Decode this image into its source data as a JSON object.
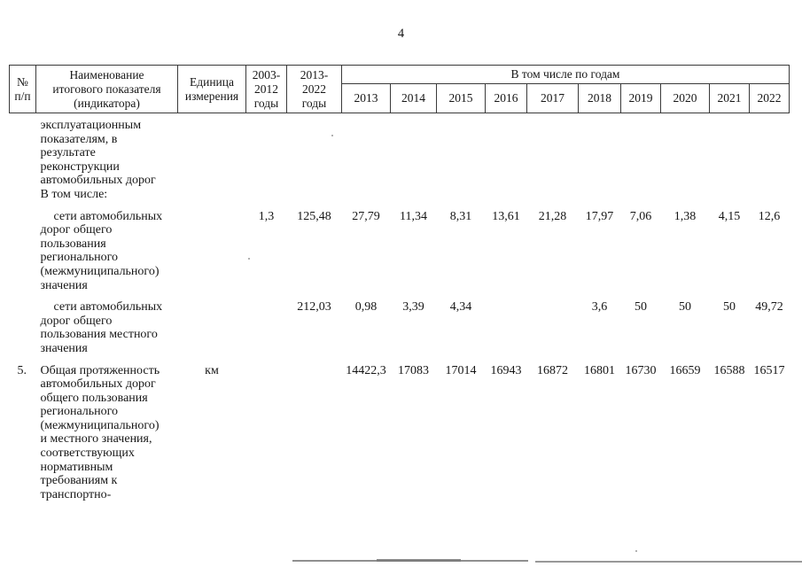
{
  "page_number": "4",
  "table": {
    "header": {
      "col_num": "№ п/п",
      "col_name": "Наименование\nитогового показателя\n(индикатора)",
      "col_unit": "Единица\nизмерения",
      "col_2003_2012": "2003-\n2012\nгоды",
      "col_2013_2022": "2013-\n2022\nгоды",
      "years_group": "В том числе по годам",
      "years": [
        "2013",
        "2014",
        "2015",
        "2016",
        "2017",
        "2018",
        "2019",
        "2020",
        "2021",
        "2022"
      ]
    },
    "rows": [
      {
        "num": "",
        "name_lines": [
          "эксплуатационным",
          "показателям, в",
          "результате",
          "реконструкции",
          "автомобильных дорог",
          "В том числе:"
        ],
        "indent_first": false,
        "unit": "",
        "v2003_2012": "",
        "v2013_2022": "",
        "by_year": [
          "",
          "",
          "",
          "",
          "",
          "",
          "",
          "",
          "",
          ""
        ]
      },
      {
        "num": "",
        "name_lines": [
          "сети автомобильных",
          "дорог общего",
          "пользования",
          "регионального",
          "(межмуниципального)",
          "значения"
        ],
        "indent_first": true,
        "unit": "",
        "v2003_2012": "1,3",
        "v2013_2022": "125,48",
        "by_year": [
          "27,79",
          "11,34",
          "8,31",
          "13,61",
          "21,28",
          "17,97",
          "7,06",
          "1,38",
          "4,15",
          "12,6"
        ]
      },
      {
        "num": "",
        "name_lines": [
          "сети автомобильных",
          "дорог общего",
          "пользования местного",
          "значения"
        ],
        "indent_first": true,
        "unit": "",
        "v2003_2012": "",
        "v2013_2022": "212,03",
        "by_year": [
          "0,98",
          "3,39",
          "4,34",
          "",
          "",
          "3,6",
          "50",
          "50",
          "50",
          "49,72"
        ]
      },
      {
        "num": "5.",
        "name_lines": [
          "Общая протяженность",
          "автомобильных дорог",
          "общего пользования",
          "регионального",
          "(межмуниципального)",
          "и местного значения,",
          "соответствующих",
          "нормативным",
          "требованиям к",
          "транспортно-"
        ],
        "indent_first": false,
        "unit": "км",
        "v2003_2012": "",
        "v2013_2022": "",
        "by_year": [
          "14422,3",
          "17083",
          "17014",
          "16943",
          "16872",
          "16801",
          "16730",
          "16659",
          "16588",
          "16517"
        ]
      }
    ]
  }
}
